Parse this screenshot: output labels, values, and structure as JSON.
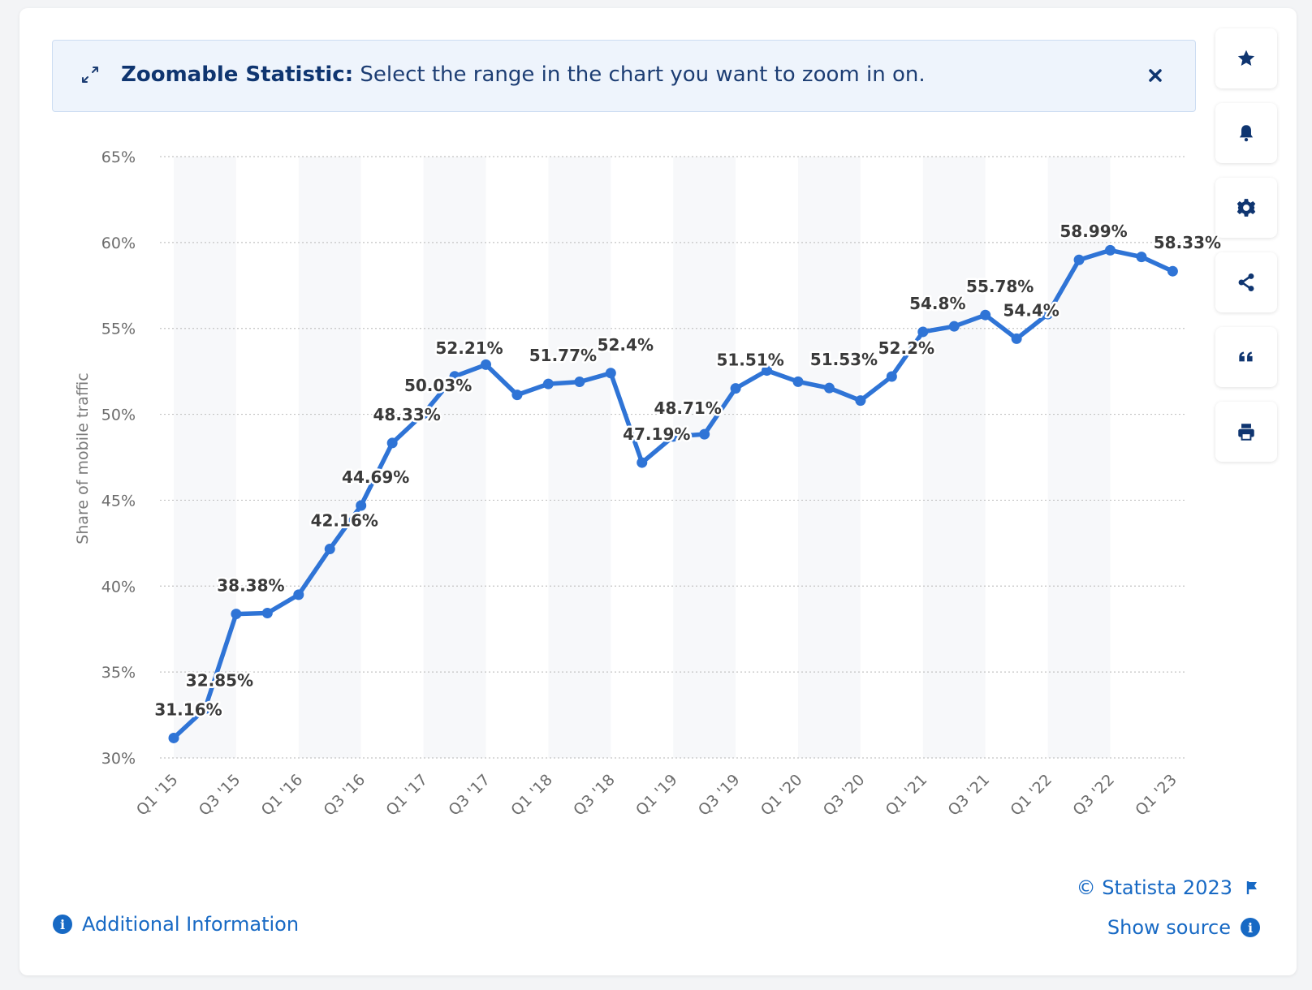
{
  "banner": {
    "title": "Zoomable Statistic:",
    "text": "Select the range in the chart you want to zoom in on."
  },
  "sidebar": {
    "buttons": [
      {
        "icon": "star-icon",
        "name": "favorite-button"
      },
      {
        "icon": "bell-icon",
        "name": "notification-button"
      },
      {
        "icon": "gear-icon",
        "name": "settings-button"
      },
      {
        "icon": "share-icon",
        "name": "share-button"
      },
      {
        "icon": "quote-icon",
        "name": "cite-button"
      },
      {
        "icon": "print-icon",
        "name": "print-button"
      }
    ]
  },
  "footer": {
    "copyright": "© Statista 2023",
    "additional_info": "Additional Information",
    "show_source": "Show source"
  },
  "colors": {
    "line": "#2f74d6",
    "accent": "#1769c4",
    "banner_text": "#0f3570"
  },
  "chart_data": {
    "type": "line",
    "ylabel": "Share of mobile traffic",
    "ylim": [
      30,
      65
    ],
    "yticks": [
      30,
      35,
      40,
      45,
      50,
      55,
      60,
      65
    ],
    "ytick_suffix": "%",
    "grid": true,
    "x": [
      "Q1 '15",
      "Q2 '15",
      "Q3 '15",
      "Q4 '15",
      "Q1 '16",
      "Q2 '16",
      "Q3 '16",
      "Q4 '16",
      "Q1 '17",
      "Q2 '17",
      "Q3 '17",
      "Q4 '17",
      "Q1 '18",
      "Q2 '18",
      "Q3 '18",
      "Q4 '18",
      "Q1 '19",
      "Q2 '19",
      "Q3 '19",
      "Q4 '19",
      "Q1 '20",
      "Q2 '20",
      "Q3 '20",
      "Q4 '20",
      "Q1 '21",
      "Q2 '21",
      "Q3 '21",
      "Q4 '21",
      "Q1 '22",
      "Q2 '22",
      "Q3 '22",
      "Q4 '22",
      "Q1 '23"
    ],
    "xtick_labels": [
      "Q1 '15",
      "Q3 '15",
      "Q1 '16",
      "Q3 '16",
      "Q1 '17",
      "Q3 '17",
      "Q1 '18",
      "Q3 '18",
      "Q1 '19",
      "Q3 '19",
      "Q1 '20",
      "Q3 '20",
      "Q1 '21",
      "Q3 '21",
      "Q1 '22",
      "Q3 '22",
      "Q1 '23"
    ],
    "values": [
      31.16,
      32.85,
      38.38,
      38.43,
      39.5,
      42.16,
      44.69,
      48.33,
      50.03,
      52.21,
      52.89,
      51.13,
      51.77,
      51.89,
      52.4,
      47.19,
      48.71,
      48.84,
      51.51,
      52.55,
      51.9,
      51.53,
      50.8,
      52.2,
      54.8,
      55.12,
      55.78,
      54.4,
      55.83,
      58.99,
      59.55,
      59.16,
      58.33
    ],
    "data_labels": [
      {
        "i": 0,
        "text": "31.16%"
      },
      {
        "i": 1,
        "text": "32.85%"
      },
      {
        "i": 2,
        "text": "38.38%"
      },
      {
        "i": 5,
        "text": "42.16%"
      },
      {
        "i": 6,
        "text": "44.69%"
      },
      {
        "i": 7,
        "text": "48.33%"
      },
      {
        "i": 8,
        "text": "50.03%"
      },
      {
        "i": 9,
        "text": "52.21%"
      },
      {
        "i": 12,
        "text": "51.77%"
      },
      {
        "i": 14,
        "text": "52.4%"
      },
      {
        "i": 15,
        "text": "47.19%"
      },
      {
        "i": 16,
        "text": "48.71%"
      },
      {
        "i": 18,
        "text": "51.51%"
      },
      {
        "i": 21,
        "text": "51.53%"
      },
      {
        "i": 23,
        "text": "52.2%"
      },
      {
        "i": 24,
        "text": "54.8%"
      },
      {
        "i": 26,
        "text": "55.78%"
      },
      {
        "i": 27,
        "text": "54.4%"
      },
      {
        "i": 29,
        "text": "58.99%"
      },
      {
        "i": 32,
        "text": "58.33%"
      }
    ]
  }
}
